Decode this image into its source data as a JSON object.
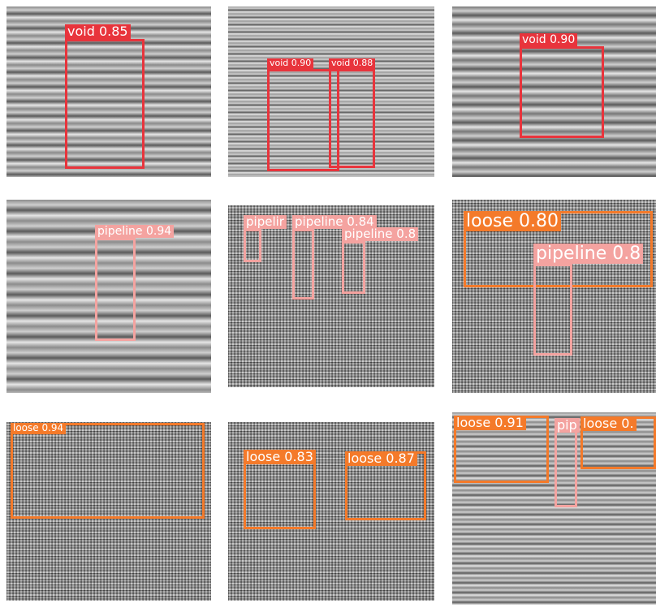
{
  "panels": [
    {
      "detections": [
        {
          "label": "void 0.85"
        }
      ]
    },
    {
      "detections": [
        {
          "label": "void 0.90"
        },
        {
          "label": "void 0.88"
        }
      ]
    },
    {
      "detections": [
        {
          "label": "void 0.90"
        }
      ]
    },
    {
      "detections": [
        {
          "label": "pipeline 0.94"
        }
      ]
    },
    {
      "detections": [
        {
          "label": "pipelir"
        },
        {
          "label": "pipeline 0.84"
        },
        {
          "label": "pipeline 0.8"
        }
      ]
    },
    {
      "detections": [
        {
          "label": "loose 0.80"
        },
        {
          "label": "pipeline 0.8"
        }
      ]
    },
    {
      "detections": [
        {
          "label": "loose 0.94"
        }
      ]
    },
    {
      "detections": [
        {
          "label": "loose 0.83"
        },
        {
          "label": "loose 0.87"
        }
      ]
    },
    {
      "detections": [
        {
          "label": "loose 0.91"
        },
        {
          "label": "pip"
        },
        {
          "label": "loose 0."
        }
      ]
    }
  ]
}
